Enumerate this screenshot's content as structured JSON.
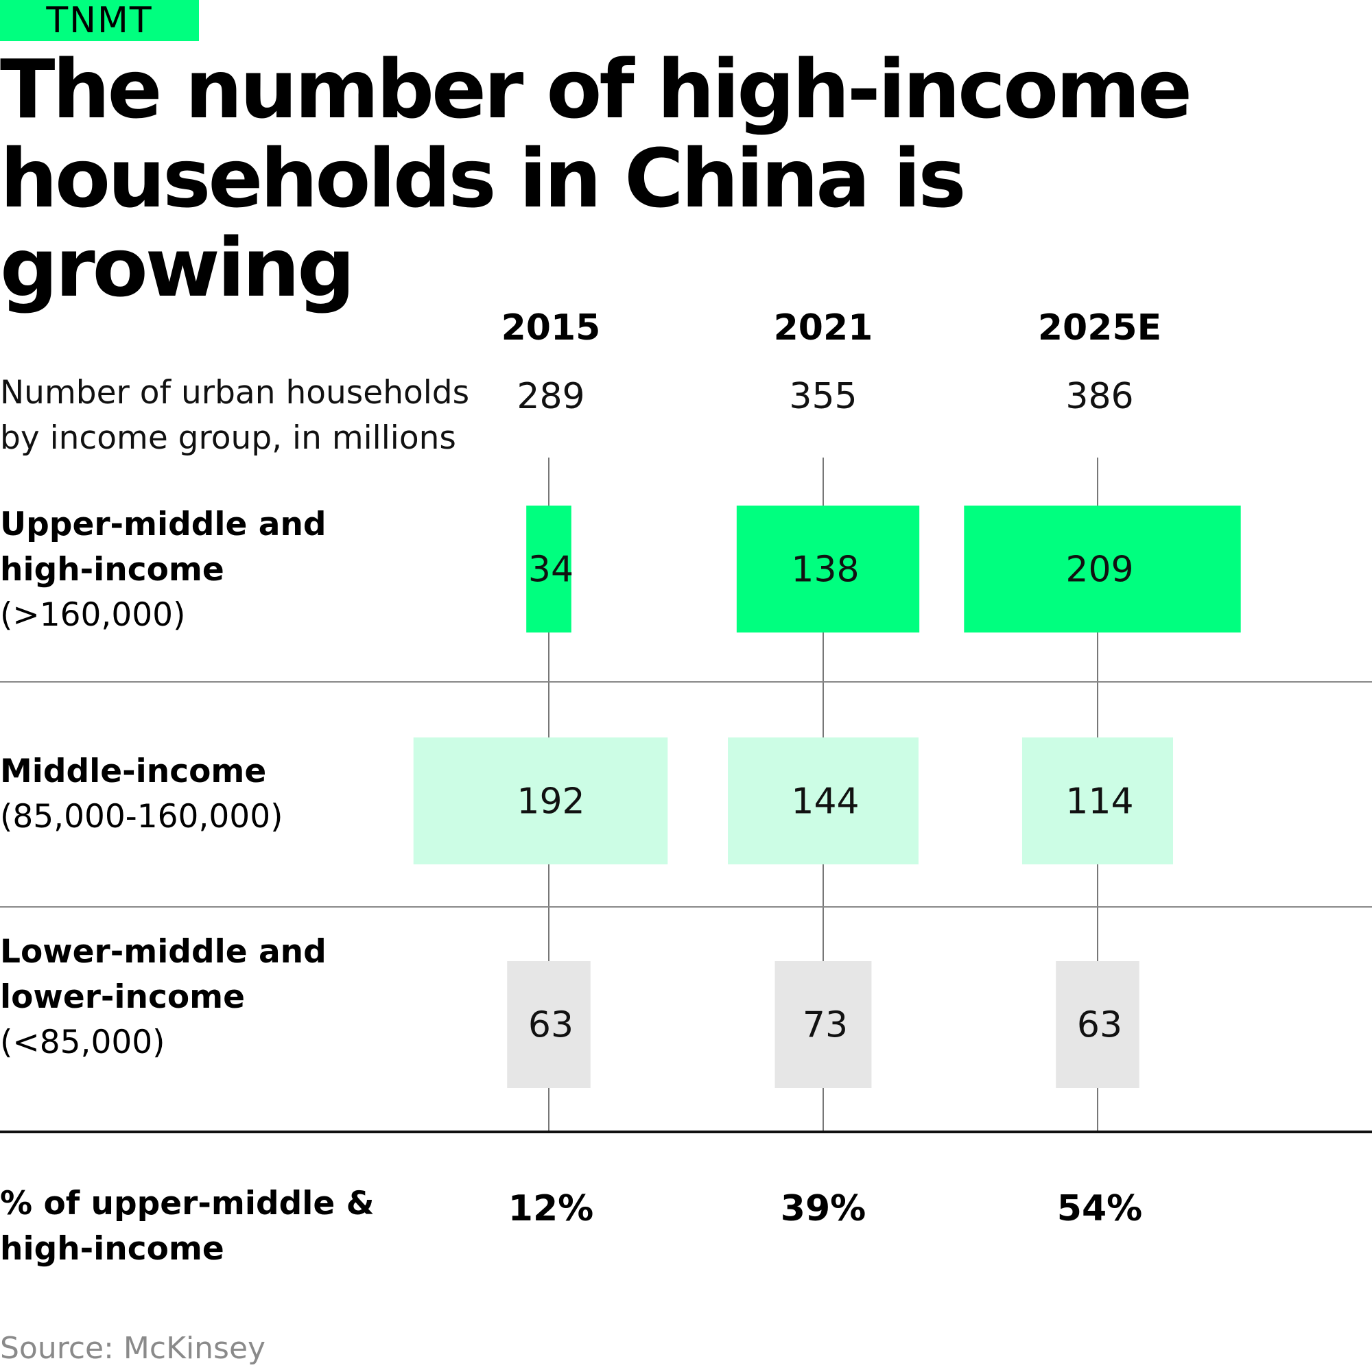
{
  "brand": {
    "logo_text": "TNMT",
    "accent_color": "#00ff7f"
  },
  "header": {
    "title": "The number of high-income households in China is growing"
  },
  "chart_data": {
    "type": "table",
    "title": "The number of high-income households in China is growing",
    "unit_label": "Number of urban households\nby income group, in millions",
    "years": [
      "2015",
      "2021",
      "2025E"
    ],
    "totals": [
      "289",
      "355",
      "386"
    ],
    "groups": [
      {
        "name": "Upper-middle and\nhigh-income",
        "range": "(>160,000)",
        "color": "#00ff7f",
        "values": [
          34,
          138,
          209
        ]
      },
      {
        "name": "Middle-income",
        "range": "(85,000-160,000)",
        "color": "#ccfde5",
        "values": [
          192,
          144,
          114
        ]
      },
      {
        "name": "Lower-middle and\nlower-income",
        "range": "(<85,000)",
        "color": "#e6e6e6",
        "values": [
          63,
          73,
          63
        ]
      }
    ],
    "share_label": "% of upper-middle &\nhigh-income",
    "shares": [
      "12%",
      "39%",
      "54%"
    ]
  },
  "footer": {
    "source": "Source: McKinsey"
  }
}
